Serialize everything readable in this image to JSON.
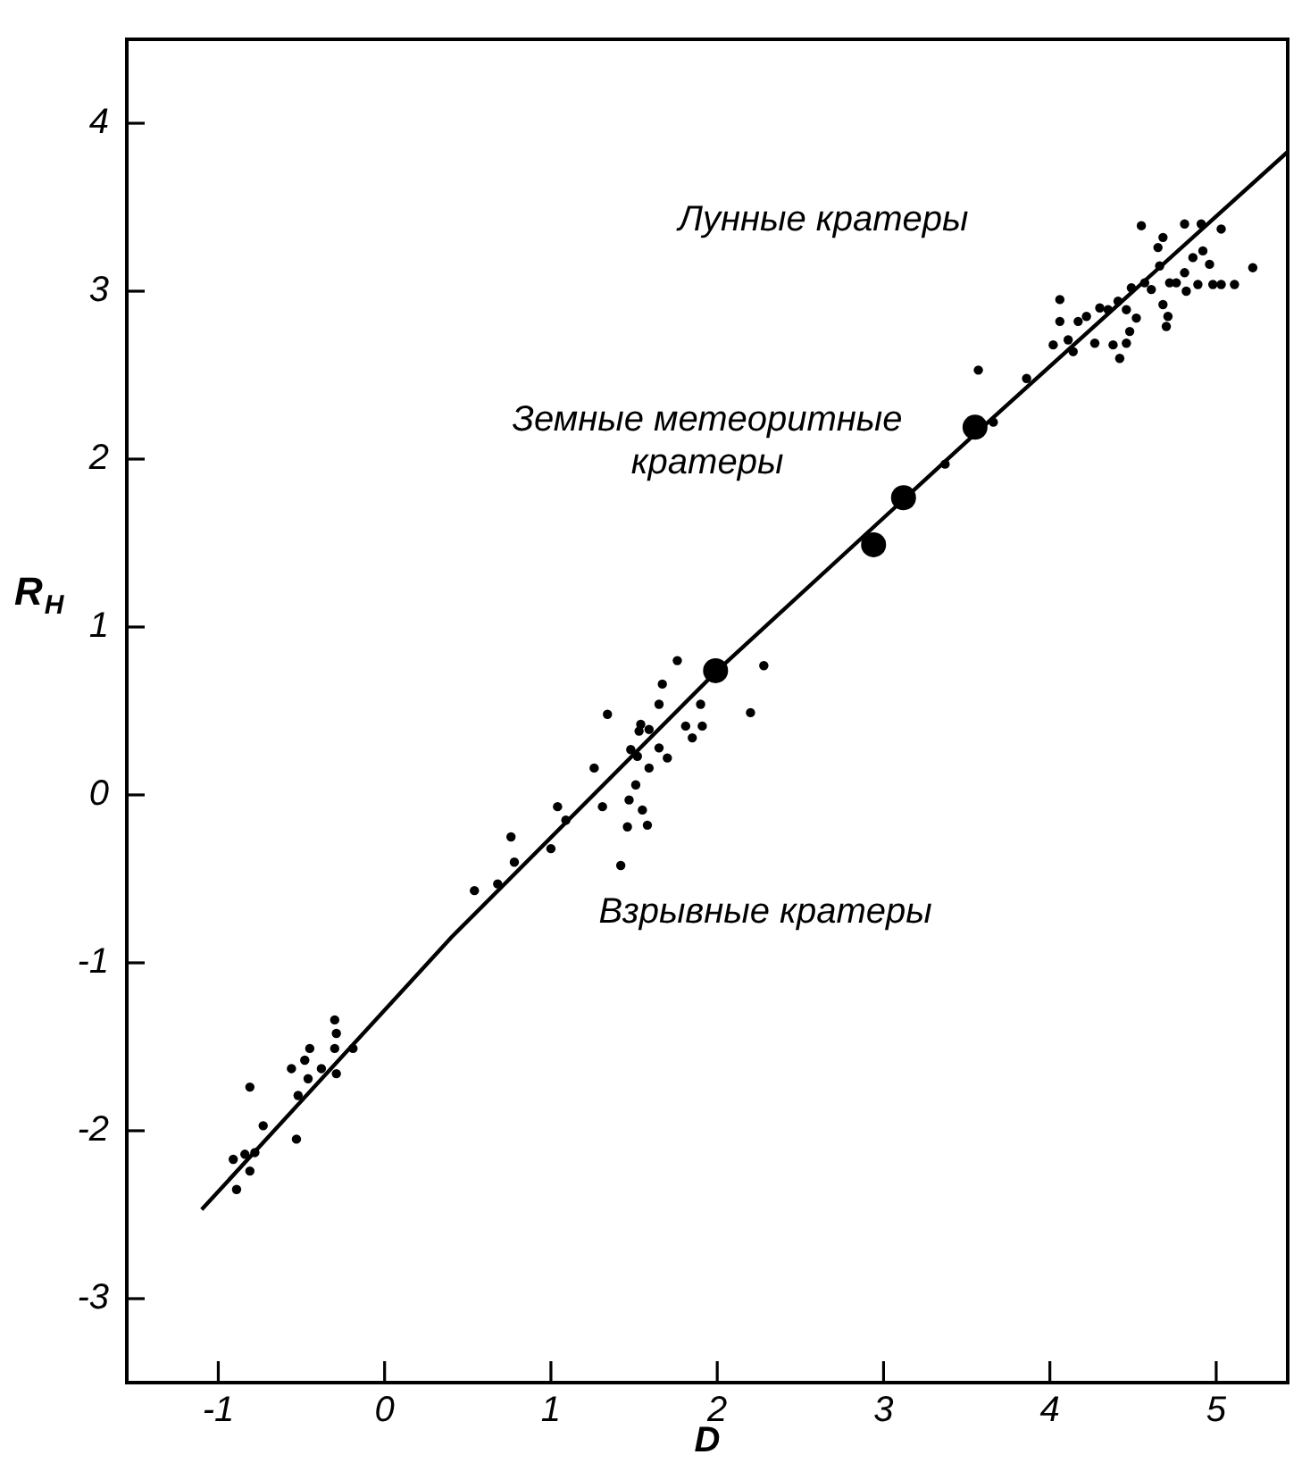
{
  "chart_data": {
    "type": "scatter",
    "xlabel": "D",
    "ylabel": "R$_{H}$",
    "xlim": [
      -1.55,
      5.43
    ],
    "ylim": [
      -3.5,
      4.5
    ],
    "xticks": [
      -1,
      0,
      1,
      2,
      3,
      4,
      5
    ],
    "yticks": [
      -3,
      -2,
      -1,
      0,
      1,
      2,
      3,
      4
    ],
    "grid": false,
    "legend": false,
    "marker": "circle",
    "annotations": [
      "Лунные кратеры",
      "Земные метеоритные\nкратеры",
      "Взрывные кратеры"
    ],
    "series": [
      {
        "type": "scatter",
        "color": "#000000",
        "x": [
          -0.91,
          -0.81,
          -0.73,
          -0.78,
          -0.84,
          -0.89,
          -0.81,
          -0.53,
          -0.56,
          -0.45,
          -0.48,
          -0.52,
          -0.46,
          -0.3,
          -0.29,
          -0.3,
          -0.38,
          -0.29,
          -0.19,
          0.54,
          0.68,
          0.76,
          0.78,
          1.0,
          1.04,
          1.09,
          1.26,
          1.31,
          1.34,
          1.42,
          1.47,
          1.46,
          1.51,
          1.55,
          1.58,
          1.48,
          1.52,
          1.59,
          1.65,
          1.7,
          1.53,
          1.59,
          1.54,
          1.65,
          1.67,
          1.76,
          1.81,
          1.85,
          1.91,
          1.9,
          2.2,
          2.28,
          3.57,
          3.86,
          3.66,
          3.37,
          4.06,
          4.06,
          4.02,
          4.11,
          4.14,
          4.17,
          4.22,
          4.3,
          4.35,
          4.41,
          4.27,
          4.38,
          4.46,
          4.42,
          4.48,
          4.46,
          4.52,
          4.49,
          4.55,
          4.57,
          4.61,
          4.66,
          4.65,
          4.68,
          4.68,
          4.71,
          4.7,
          4.72,
          4.76,
          4.81,
          4.82,
          4.81,
          4.86,
          4.91,
          4.92,
          4.96,
          4.89,
          4.98,
          5.03,
          5.03,
          5.11,
          5.22
        ],
        "values": [
          -2.17,
          -1.74,
          -1.97,
          -2.13,
          -2.14,
          -2.35,
          -2.24,
          -2.05,
          -1.63,
          -1.51,
          -1.58,
          -1.79,
          -1.69,
          -1.34,
          -1.42,
          -1.51,
          -1.63,
          -1.66,
          -1.51,
          -0.57,
          -0.53,
          -0.25,
          -0.4,
          -0.32,
          -0.07,
          -0.15,
          0.16,
          -0.07,
          0.48,
          -0.42,
          -0.03,
          -0.19,
          0.06,
          -0.09,
          -0.18,
          0.27,
          0.23,
          0.16,
          0.28,
          0.22,
          0.38,
          0.39,
          0.42,
          0.54,
          0.66,
          0.8,
          0.41,
          0.34,
          0.41,
          0.54,
          0.49,
          0.77,
          2.53,
          2.48,
          2.22,
          1.97,
          2.95,
          2.82,
          2.68,
          2.71,
          2.64,
          2.82,
          2.85,
          2.9,
          2.89,
          2.94,
          2.69,
          2.68,
          2.69,
          2.6,
          2.76,
          2.89,
          2.84,
          3.02,
          3.39,
          3.05,
          3.01,
          3.15,
          3.26,
          3.32,
          2.92,
          2.85,
          2.79,
          3.05,
          3.05,
          3.11,
          3.0,
          3.4,
          3.2,
          3.4,
          3.24,
          3.16,
          3.04,
          3.04,
          3.37,
          3.04,
          3.04,
          3.14
        ]
      },
      {
        "type": "scatter",
        "color": "#000000",
        "marker": "circle",
        "x": [
          1.99,
          2.94,
          3.12,
          3.55
        ],
        "values": [
          0.74,
          1.49,
          1.77,
          2.19
        ]
      },
      {
        "type": "line",
        "color": "#000000",
        "marker": "none",
        "line_style": "solid",
        "x": [
          -1.1,
          0.4,
          2.0,
          3.55,
          5.43
        ],
        "values": [
          -2.47,
          -0.85,
          0.74,
          2.15,
          3.83
        ]
      }
    ]
  }
}
